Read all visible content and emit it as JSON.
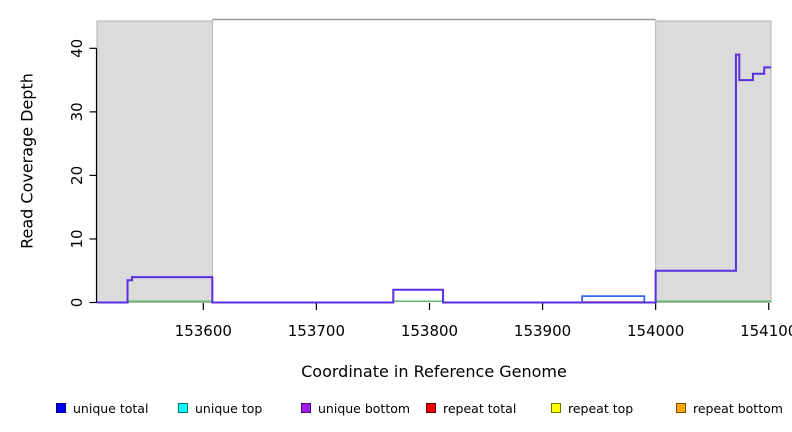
{
  "chart_data": {
    "type": "line",
    "title": "",
    "xlabel": "Coordinate in Reference Genome",
    "ylabel": "Read Coverage Depth",
    "x_ticks": [
      153600,
      153700,
      153800,
      153900,
      154000,
      154100
    ],
    "y_ticks": [
      0,
      10,
      20,
      30,
      40
    ],
    "xlim": [
      153506,
      154102
    ],
    "ylim": [
      0,
      44.3
    ],
    "grid": false,
    "legend_position": "bottom",
    "shaded_regions": [
      [
        153506,
        153608
      ],
      [
        154000,
        154102
      ]
    ],
    "colors": {
      "region_fill": "#dbdbdb",
      "region_border": "#b2b2b2",
      "region_top_line": "#999999",
      "axis": "#000000",
      "unique_line": "#5b2ee0",
      "unique_total_line": "#3b66f0",
      "repeat_total_line": "#e05050",
      "baseline_green": "#5cbf6e"
    },
    "series": [
      {
        "name": "unique coverage step line",
        "color_key": "unique_line",
        "points": [
          [
            153506,
            0
          ],
          [
            153533,
            0
          ],
          [
            153533,
            3.5
          ],
          [
            153537,
            3.5
          ],
          [
            153537,
            4
          ],
          [
            153608,
            4
          ],
          [
            153608,
            0
          ],
          [
            153768,
            0
          ],
          [
            153768,
            2
          ],
          [
            153812,
            2
          ],
          [
            153812,
            0
          ],
          [
            154000,
            0
          ],
          [
            154000,
            5
          ],
          [
            154071,
            5
          ],
          [
            154071,
            39
          ],
          [
            154074,
            39
          ],
          [
            154074,
            35
          ],
          [
            154086,
            35
          ],
          [
            154086,
            36
          ],
          [
            154096,
            36
          ],
          [
            154096,
            37
          ],
          [
            154102,
            37
          ]
        ]
      },
      {
        "name": "unique total bump",
        "color_key": "unique_total_line",
        "points": [
          [
            153935,
            0
          ],
          [
            153935,
            1
          ],
          [
            153990,
            1
          ],
          [
            153990,
            0
          ]
        ]
      }
    ],
    "repeat_total_segments": [
      [
        153935,
        153990
      ]
    ],
    "baseline_green_segments": [
      [
        153533,
        153608
      ],
      [
        153768,
        153812
      ],
      [
        154000,
        154102
      ]
    ],
    "legend": [
      {
        "label": "unique total",
        "color": "#0000ff"
      },
      {
        "label": "unique top",
        "color": "#00ffff"
      },
      {
        "label": "unique bottom",
        "color": "#a020f0"
      },
      {
        "label": "repeat total",
        "color": "#ee0000"
      },
      {
        "label": "repeat top",
        "color": "#ffff00"
      },
      {
        "label": "repeat bottom",
        "color": "#ffa500"
      }
    ]
  }
}
